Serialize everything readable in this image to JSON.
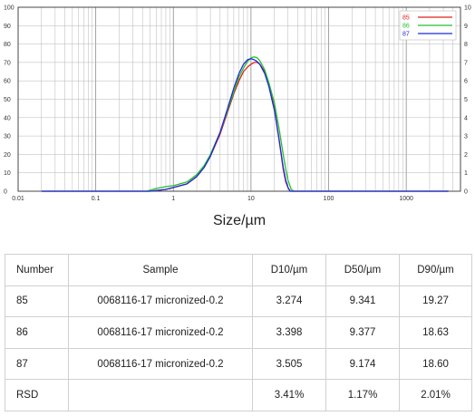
{
  "chart_data": {
    "type": "line",
    "title": "",
    "xlabel": "Size/µm",
    "ylabel": "",
    "x_scale": "log",
    "xlim": [
      0.01,
      5000
    ],
    "ylim": [
      0,
      100
    ],
    "y2lim": [
      0,
      10
    ],
    "x_ticks": [
      "0.01",
      "0.1",
      "1",
      "10",
      "100",
      "1000"
    ],
    "y_ticks": [
      "0",
      "10",
      "20",
      "30",
      "40",
      "50",
      "60",
      "70",
      "80",
      "90",
      "100"
    ],
    "y2_ticks": [
      "0",
      "1",
      "2",
      "3",
      "4",
      "5",
      "6",
      "7",
      "8",
      "9",
      "10"
    ],
    "grid": true,
    "legend": "top-right",
    "series": [
      {
        "name": "85",
        "color": "#e0201c",
        "x": [
          0.02,
          0.3,
          0.5,
          0.8,
          1,
          1.5,
          2,
          2.5,
          3,
          4,
          5,
          6,
          7,
          8,
          9,
          10,
          11,
          12,
          13,
          15,
          17,
          20,
          23,
          26,
          28,
          30,
          32,
          35,
          40,
          100,
          500,
          3500
        ],
        "y": [
          0,
          0,
          0,
          1,
          2,
          4,
          8,
          13,
          19,
          31,
          43,
          53,
          60,
          65,
          67.5,
          69,
          70,
          70,
          69,
          65,
          58,
          45,
          28,
          12,
          5,
          2,
          0,
          0,
          0,
          0,
          0,
          0
        ]
      },
      {
        "name": "86",
        "color": "#22c02a",
        "x": [
          0.02,
          0.3,
          0.45,
          0.6,
          0.8,
          1,
          1.5,
          2,
          2.5,
          3,
          4,
          5,
          6,
          7,
          8,
          9,
          10,
          11,
          12,
          13,
          15,
          17,
          20,
          23,
          26,
          28,
          30,
          33,
          36,
          40,
          100,
          500,
          3500
        ],
        "y": [
          0,
          0,
          0,
          1.5,
          2.5,
          3,
          5,
          9,
          14,
          20,
          32,
          44,
          54,
          62,
          67,
          70.5,
          72.5,
          73,
          72.5,
          71,
          66,
          59,
          48,
          34,
          20,
          12,
          6,
          1,
          0,
          0,
          0,
          0,
          0
        ]
      },
      {
        "name": "87",
        "color": "#1c2ae0",
        "x": [
          0.02,
          0.3,
          0.5,
          0.8,
          1,
          1.5,
          2,
          2.5,
          3,
          4,
          5,
          6,
          7,
          8,
          9,
          10,
          11,
          12,
          13,
          15,
          17,
          20,
          23,
          26,
          28,
          30,
          32,
          35,
          40,
          100,
          500,
          3500
        ],
        "y": [
          0,
          0,
          0,
          1,
          2,
          4,
          8,
          13,
          19,
          32,
          45,
          56,
          64,
          69,
          71.5,
          72,
          71.5,
          70.5,
          69,
          64,
          57,
          44,
          28,
          13,
          6,
          2,
          0,
          0,
          0,
          0,
          0,
          0
        ]
      }
    ]
  },
  "table": {
    "headers": [
      "Number",
      "Sample",
      "D10/µm",
      "D50/µm",
      "D90/µm"
    ],
    "rows": [
      [
        "85",
        "0068116-17 micronized-0.2",
        "3.274",
        "9.341",
        "19.27"
      ],
      [
        "86",
        "0068116-17 micronized-0.2",
        "3.398",
        "9.377",
        "18.63"
      ],
      [
        "87",
        "0068116-17 micronized-0.2",
        "3.505",
        "9.174",
        "18.60"
      ],
      [
        "RSD",
        "",
        "3.41%",
        "1.17%",
        "2.01%"
      ]
    ]
  }
}
